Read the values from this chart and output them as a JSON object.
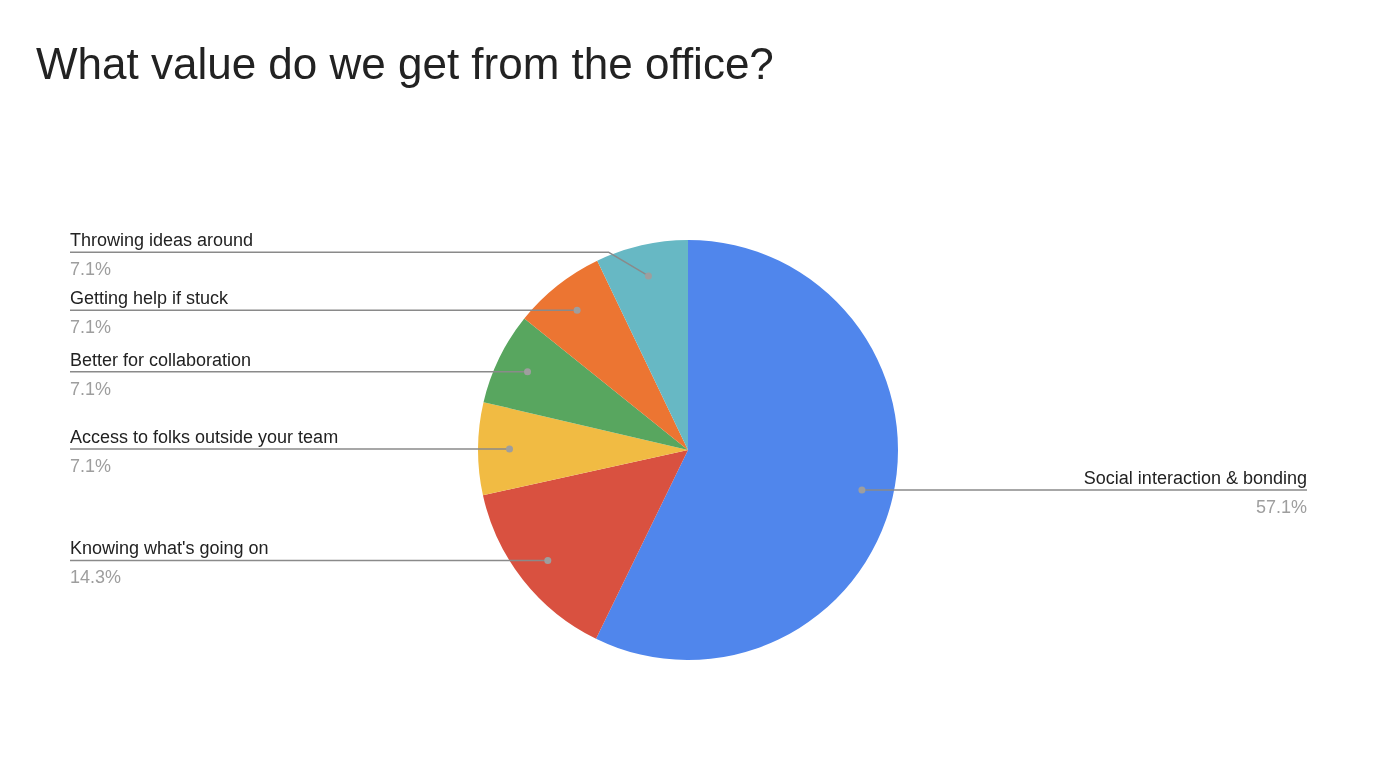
{
  "chart_data": {
    "type": "pie",
    "title": "What value do we get from the office?",
    "categories": [
      "Social interaction & bonding",
      "Knowing what's going on",
      "Access to folks outside your team",
      "Better for collaboration",
      "Getting help if stuck",
      "Throwing ideas around"
    ],
    "values": [
      57.1,
      14.3,
      7.1,
      7.1,
      7.1,
      7.1
    ],
    "colors": [
      "#5086ec",
      "#d95140",
      "#f1bb43",
      "#58a65f",
      "#ec7532",
      "#67b8c4"
    ],
    "value_labels": [
      "57.1%",
      "14.3%",
      "7.1%",
      "7.1%",
      "7.1%",
      "7.1%"
    ],
    "legend": false
  }
}
